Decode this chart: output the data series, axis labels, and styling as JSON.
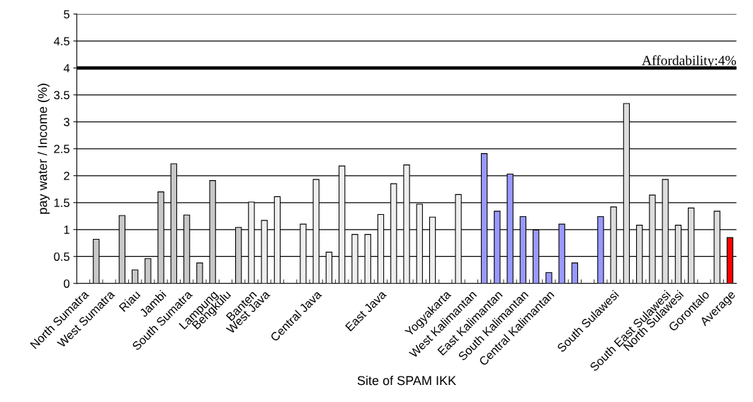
{
  "chart_data": {
    "type": "bar",
    "xlabel": "Site of SPAM IKK",
    "ylabel": "pay water / Income (%)",
    "categories": [
      "North Sumatra",
      null,
      "West Sumatra",
      null,
      "Riau",
      null,
      "Jambi",
      null,
      "South Sumatra",
      null,
      "Lampung",
      "Bengkulu",
      null,
      "Banten",
      "West Java",
      null,
      null,
      null,
      "Central Java",
      null,
      null,
      null,
      null,
      "East Java",
      null,
      null,
      null,
      null,
      "Yogyakarta",
      null,
      "West Kalimantan",
      null,
      "East Kalimantan",
      null,
      "South Kalimantan",
      null,
      "Central Kalimantan",
      null,
      null,
      null,
      null,
      "South Sulawesi",
      null,
      null,
      null,
      "South East Sulawesi",
      "North Sulawesi",
      null,
      "Gorontalo",
      null,
      "Average"
    ],
    "values": [
      null,
      0.82,
      null,
      1.26,
      0.25,
      0.46,
      1.7,
      2.22,
      1.27,
      0.38,
      1.91,
      null,
      1.04,
      1.51,
      1.17,
      1.61,
      null,
      1.1,
      1.93,
      0.58,
      2.18,
      0.91,
      0.91,
      1.28,
      1.85,
      2.2,
      1.47,
      1.23,
      null,
      1.65,
      null,
      2.41,
      1.34,
      2.03,
      1.24,
      0.99,
      0.2,
      1.1,
      0.38,
      null,
      1.24,
      1.42,
      3.34,
      1.08,
      1.64,
      1.93,
      1.08,
      1.4,
      null,
      1.34,
      0.85
    ],
    "colors": [
      "#c8c8c8",
      "#c8c8c8",
      "#c8c8c8",
      "#c8c8c8",
      "#c8c8c8",
      "#c8c8c8",
      "#c8c8c8",
      "#c8c8c8",
      "#c8c8c8",
      "#c8c8c8",
      "#c8c8c8",
      "#c8c8c8",
      "#c8c8c8",
      "#eeeeee",
      "#eeeeee",
      "#eeeeee",
      "#eeeeee",
      "#eeeeee",
      "#eeeeee",
      "#eeeeee",
      "#eeeeee",
      "#eeeeee",
      "#eeeeee",
      "#eeeeee",
      "#eeeeee",
      "#eeeeee",
      "#eeeeee",
      "#eeeeee",
      "#eeeeee",
      "#eeeeee",
      "#9999ff",
      "#9999ff",
      "#9999ff",
      "#9999ff",
      "#9999ff",
      "#9999ff",
      "#9999ff",
      "#9999ff",
      "#9999ff",
      "#9999ff",
      "#9999ff",
      "#dddddd",
      "#dddddd",
      "#dddddd",
      "#dddddd",
      "#dddddd",
      "#dddddd",
      "#dddddd",
      "#dddddd",
      "#dddddd",
      "#ff0000"
    ],
    "ylim": [
      0,
      5
    ],
    "yticks": [
      0,
      0.5,
      1,
      1.5,
      2,
      2.5,
      3,
      3.5,
      4,
      4.5,
      5
    ],
    "grid": "y",
    "legend": false,
    "ref_lines": [
      {
        "axis": "y",
        "value": 4,
        "label": "Affordability:4%",
        "color": "#000000",
        "line_style": "solid"
      }
    ]
  }
}
